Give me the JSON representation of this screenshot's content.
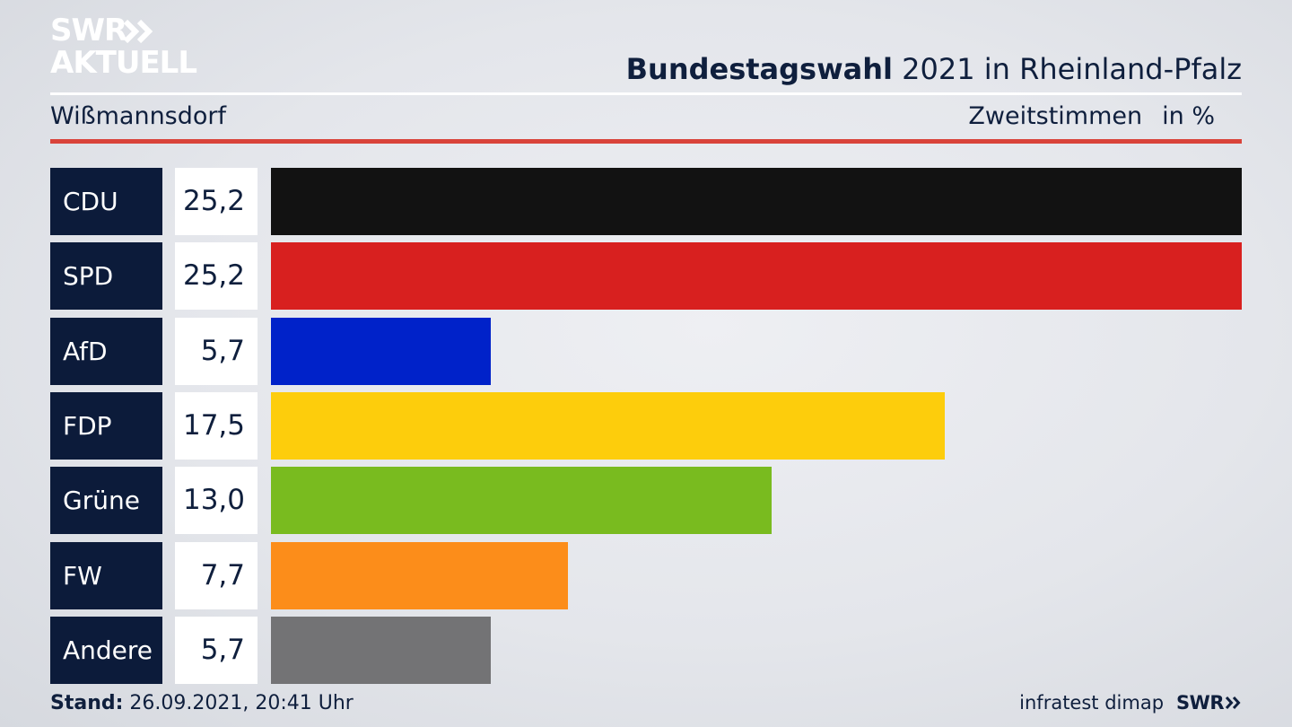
{
  "brand": {
    "logo_line1": "SWR",
    "logo_line2": "AKTUELL",
    "footer_logo": "SWR",
    "source": "infratest dimap"
  },
  "header": {
    "title_bold": "Bundestagswahl",
    "title_rest": "2021 in Rheinland-Pfalz",
    "location": "Wißmannsdorf",
    "metric": "Zweitstimmen",
    "unit": "in %"
  },
  "footer": {
    "stand_label": "Stand:",
    "stand_value": "26.09.2021, 20:41 Uhr"
  },
  "chart_data": {
    "type": "bar",
    "orientation": "horizontal",
    "categories": [
      "CDU",
      "SPD",
      "AfD",
      "FDP",
      "Grüne",
      "FW",
      "Andere"
    ],
    "values": [
      25.2,
      25.2,
      5.7,
      17.5,
      13.0,
      7.7,
      5.7
    ],
    "value_labels": [
      "25,2",
      "25,2",
      "5,7",
      "17,5",
      "13,0",
      "7,7",
      "5,7"
    ],
    "colors": [
      "#121212",
      "#d8201f",
      "#0022c9",
      "#fdcd0c",
      "#79bb1f",
      "#fc8d1a",
      "#737375"
    ],
    "xlim": [
      0,
      25.2
    ]
  }
}
